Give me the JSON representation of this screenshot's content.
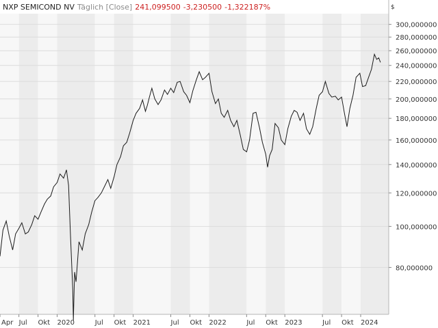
{
  "header": {
    "instrument": "NXP SEMICOND NV",
    "period": "Täglich [Close]",
    "last": "241,099500",
    "change": "-3,230500",
    "change_pct": "-1,322187%",
    "currency": "$"
  },
  "colors": {
    "background": "#ffffff",
    "band_light": "#f7f7f7",
    "band_dark": "#ececec",
    "gridline": "#dcdcdc",
    "line": "#1a1a1a",
    "header_values": "#cc1f1f",
    "axis_text": "#333333"
  },
  "chart_data": {
    "type": "line",
    "title": "NXP SEMICOND NV",
    "y_scale": "log",
    "ylim": [
      62,
      318
    ],
    "xlim": [
      "2019-04-01",
      "2024-05-15"
    ],
    "grid": true,
    "y_ticks": [
      {
        "value": 80,
        "label": "80,000000"
      },
      {
        "value": 100,
        "label": "100,000000"
      },
      {
        "value": 120,
        "label": "120,000000"
      },
      {
        "value": 140,
        "label": "140,000000"
      },
      {
        "value": 160,
        "label": "160,000000"
      },
      {
        "value": 180,
        "label": "180,000000"
      },
      {
        "value": 200,
        "label": "200,000000"
      },
      {
        "value": 220,
        "label": "220,000000"
      },
      {
        "value": 240,
        "label": "240,000000"
      },
      {
        "value": 260,
        "label": "260,000000"
      },
      {
        "value": 280,
        "label": "280,000000"
      },
      {
        "value": 300,
        "label": "300,000000"
      }
    ],
    "x_ticks": [
      {
        "date": "2019-04-01",
        "label": "Apr"
      },
      {
        "date": "2019-07-01",
        "label": "Jul"
      },
      {
        "date": "2019-10-01",
        "label": "Okt"
      },
      {
        "date": "2020-01-01",
        "label": "2020"
      },
      {
        "date": "2020-07-01",
        "label": "Jul"
      },
      {
        "date": "2020-10-01",
        "label": "Okt"
      },
      {
        "date": "2021-01-01",
        "label": "2021"
      },
      {
        "date": "2021-07-01",
        "label": "Jul"
      },
      {
        "date": "2021-10-01",
        "label": "Okt"
      },
      {
        "date": "2022-01-01",
        "label": "2022"
      },
      {
        "date": "2022-07-01",
        "label": "Jul"
      },
      {
        "date": "2022-10-01",
        "label": "Okt"
      },
      {
        "date": "2023-01-01",
        "label": "2023"
      },
      {
        "date": "2023-07-01",
        "label": "Jul"
      },
      {
        "date": "2023-10-01",
        "label": "Okt"
      },
      {
        "date": "2024-01-01",
        "label": "2024"
      }
    ],
    "series": [
      {
        "points": [
          [
            "2019-04-01",
            85
          ],
          [
            "2019-04-15",
            98
          ],
          [
            "2019-05-01",
            103
          ],
          [
            "2019-05-15",
            95
          ],
          [
            "2019-06-01",
            88
          ],
          [
            "2019-06-15",
            96
          ],
          [
            "2019-07-01",
            99
          ],
          [
            "2019-07-15",
            102
          ],
          [
            "2019-08-01",
            96
          ],
          [
            "2019-08-15",
            97
          ],
          [
            "2019-09-01",
            101
          ],
          [
            "2019-09-15",
            106
          ],
          [
            "2019-10-01",
            104
          ],
          [
            "2019-10-15",
            108
          ],
          [
            "2019-11-01",
            113
          ],
          [
            "2019-11-15",
            116
          ],
          [
            "2019-12-01",
            118
          ],
          [
            "2019-12-15",
            124
          ],
          [
            "2020-01-01",
            127
          ],
          [
            "2020-01-15",
            133
          ],
          [
            "2020-02-01",
            130
          ],
          [
            "2020-02-15",
            136
          ],
          [
            "2020-02-25",
            125
          ],
          [
            "2020-03-05",
            96
          ],
          [
            "2020-03-16",
            71
          ],
          [
            "2020-03-19",
            60
          ],
          [
            "2020-03-25",
            78
          ],
          [
            "2020-04-01",
            74
          ],
          [
            "2020-04-15",
            92
          ],
          [
            "2020-05-01",
            88
          ],
          [
            "2020-05-15",
            96
          ],
          [
            "2020-06-01",
            101
          ],
          [
            "2020-06-15",
            108
          ],
          [
            "2020-07-01",
            115
          ],
          [
            "2020-07-15",
            117
          ],
          [
            "2020-08-01",
            120
          ],
          [
            "2020-08-15",
            124
          ],
          [
            "2020-09-01",
            129
          ],
          [
            "2020-09-15",
            123
          ],
          [
            "2020-10-01",
            131
          ],
          [
            "2020-10-15",
            140
          ],
          [
            "2020-11-01",
            146
          ],
          [
            "2020-11-15",
            155
          ],
          [
            "2020-12-01",
            158
          ],
          [
            "2020-12-15",
            166
          ],
          [
            "2021-01-01",
            178
          ],
          [
            "2021-01-15",
            185
          ],
          [
            "2021-02-01",
            190
          ],
          [
            "2021-02-15",
            199
          ],
          [
            "2021-03-01",
            187
          ],
          [
            "2021-03-10",
            193
          ],
          [
            "2021-03-20",
            202
          ],
          [
            "2021-04-01",
            212
          ],
          [
            "2021-04-15",
            200
          ],
          [
            "2021-05-01",
            194
          ],
          [
            "2021-05-15",
            199
          ],
          [
            "2021-06-01",
            210
          ],
          [
            "2021-06-15",
            205
          ],
          [
            "2021-07-01",
            212
          ],
          [
            "2021-07-15",
            207
          ],
          [
            "2021-08-01",
            219
          ],
          [
            "2021-08-15",
            220
          ],
          [
            "2021-09-01",
            208
          ],
          [
            "2021-09-15",
            204
          ],
          [
            "2021-10-01",
            196
          ],
          [
            "2021-10-15",
            209
          ],
          [
            "2021-11-01",
            222
          ],
          [
            "2021-11-15",
            232
          ],
          [
            "2021-12-01",
            222
          ],
          [
            "2021-12-15",
            225
          ],
          [
            "2022-01-01",
            230
          ],
          [
            "2022-01-15",
            208
          ],
          [
            "2022-02-01",
            195
          ],
          [
            "2022-02-15",
            200
          ],
          [
            "2022-03-01",
            185
          ],
          [
            "2022-03-15",
            181
          ],
          [
            "2022-04-01",
            188
          ],
          [
            "2022-04-15",
            178
          ],
          [
            "2022-05-01",
            172
          ],
          [
            "2022-05-15",
            178
          ],
          [
            "2022-06-01",
            164
          ],
          [
            "2022-06-15",
            152
          ],
          [
            "2022-07-01",
            150
          ],
          [
            "2022-07-15",
            160
          ],
          [
            "2022-08-01",
            185
          ],
          [
            "2022-08-15",
            186
          ],
          [
            "2022-09-01",
            171
          ],
          [
            "2022-09-15",
            158
          ],
          [
            "2022-10-01",
            148
          ],
          [
            "2022-10-10",
            138
          ],
          [
            "2022-10-20",
            147
          ],
          [
            "2022-11-01",
            152
          ],
          [
            "2022-11-15",
            175
          ],
          [
            "2022-12-01",
            171
          ],
          [
            "2022-12-15",
            160
          ],
          [
            "2023-01-01",
            156
          ],
          [
            "2023-01-15",
            170
          ],
          [
            "2023-02-01",
            182
          ],
          [
            "2023-02-15",
            188
          ],
          [
            "2023-03-01",
            186
          ],
          [
            "2023-03-15",
            178
          ],
          [
            "2023-04-01",
            185
          ],
          [
            "2023-04-15",
            170
          ],
          [
            "2023-05-01",
            165
          ],
          [
            "2023-05-15",
            172
          ],
          [
            "2023-06-01",
            190
          ],
          [
            "2023-06-15",
            204
          ],
          [
            "2023-07-01",
            208
          ],
          [
            "2023-07-15",
            220
          ],
          [
            "2023-08-01",
            206
          ],
          [
            "2023-08-15",
            202
          ],
          [
            "2023-09-01",
            203
          ],
          [
            "2023-09-15",
            199
          ],
          [
            "2023-10-01",
            202
          ],
          [
            "2023-10-15",
            185
          ],
          [
            "2023-10-27",
            172
          ],
          [
            "2023-11-10",
            190
          ],
          [
            "2023-11-25",
            204
          ],
          [
            "2023-12-10",
            225
          ],
          [
            "2023-12-28",
            230
          ],
          [
            "2024-01-10",
            214
          ],
          [
            "2024-01-25",
            215
          ],
          [
            "2024-02-08",
            225
          ],
          [
            "2024-02-22",
            235
          ],
          [
            "2024-03-07",
            255
          ],
          [
            "2024-03-18",
            248
          ],
          [
            "2024-03-28",
            250
          ],
          [
            "2024-04-05",
            244
          ]
        ]
      }
    ]
  }
}
